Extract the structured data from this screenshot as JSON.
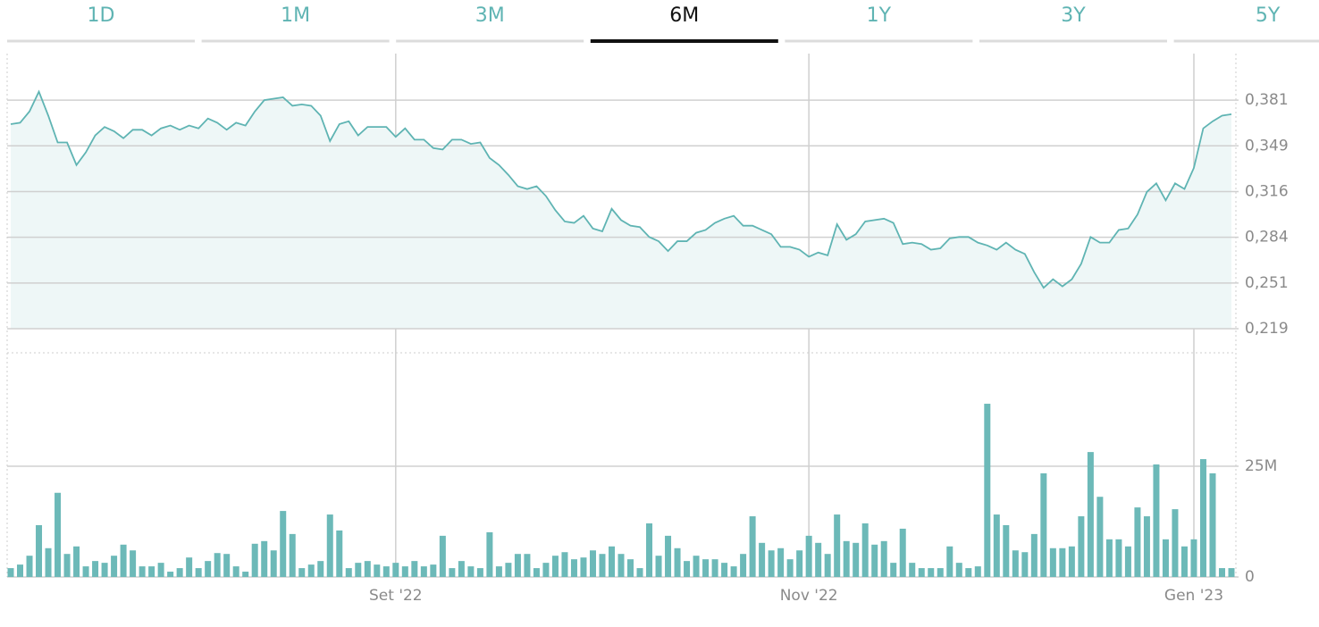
{
  "tabs": {
    "items": [
      "1D",
      "1M",
      "3M",
      "6M",
      "1Y",
      "3Y",
      "5Y"
    ],
    "active": 3
  },
  "chart_data": [
    {
      "type": "line",
      "color": "#5fb4b3",
      "fill": "#eef7f7",
      "values": [
        0.364,
        0.365,
        0.373,
        0.387,
        0.37,
        0.351,
        0.351,
        0.335,
        0.344,
        0.356,
        0.362,
        0.359,
        0.354,
        0.36,
        0.36,
        0.356,
        0.361,
        0.363,
        0.36,
        0.363,
        0.361,
        0.368,
        0.365,
        0.36,
        0.365,
        0.363,
        0.373,
        0.381,
        0.382,
        0.383,
        0.377,
        0.378,
        0.377,
        0.37,
        0.352,
        0.364,
        0.366,
        0.356,
        0.362,
        0.362,
        0.362,
        0.355,
        0.361,
        0.353,
        0.353,
        0.347,
        0.346,
        0.353,
        0.353,
        0.35,
        0.351,
        0.34,
        0.335,
        0.328,
        0.32,
        0.318,
        0.32,
        0.313,
        0.303,
        0.295,
        0.294,
        0.299,
        0.29,
        0.288,
        0.304,
        0.296,
        0.292,
        0.291,
        0.284,
        0.281,
        0.274,
        0.281,
        0.281,
        0.287,
        0.289,
        0.294,
        0.297,
        0.299,
        0.292,
        0.292,
        0.289,
        0.286,
        0.277,
        0.277,
        0.275,
        0.27,
        0.273,
        0.271,
        0.293,
        0.282,
        0.286,
        0.295,
        0.296,
        0.297,
        0.294,
        0.279,
        0.28,
        0.279,
        0.275,
        0.276,
        0.283,
        0.284,
        0.284,
        0.28,
        0.278,
        0.275,
        0.28,
        0.275,
        0.272,
        0.259,
        0.248,
        0.254,
        0.249,
        0.254,
        0.265,
        0.284,
        0.28,
        0.28,
        0.289,
        0.29,
        0.3,
        0.316,
        0.322,
        0.31,
        0.322,
        0.318,
        0.333,
        0.361,
        0.366,
        0.37,
        0.371
      ],
      "ylim": [
        0.219,
        0.414
      ],
      "yticks": [
        {
          "value": 0.219,
          "label": "0,219"
        },
        {
          "value": 0.2514,
          "label": "0,251"
        },
        {
          "value": 0.2838,
          "label": "0,284"
        },
        {
          "value": 0.3162,
          "label": "0,316"
        },
        {
          "value": 0.3486,
          "label": "0,349"
        },
        {
          "value": 0.381,
          "label": "0,381"
        }
      ],
      "grid": true
    },
    {
      "type": "bar",
      "color": "#6cb9b8",
      "categories": [
        null,
        null,
        null,
        null,
        null,
        null,
        null,
        null,
        null,
        null,
        null,
        null,
        null,
        null,
        null,
        null,
        null,
        null,
        null,
        null,
        null,
        null,
        null,
        null,
        null,
        null,
        null,
        null,
        null,
        null,
        null,
        null,
        null,
        null,
        null,
        null,
        null,
        null,
        null,
        null,
        null,
        "Set '22",
        null,
        null,
        null,
        null,
        null,
        null,
        null,
        null,
        null,
        null,
        null,
        null,
        null,
        null,
        null,
        null,
        null,
        null,
        null,
        null,
        null,
        null,
        null,
        null,
        null,
        null,
        null,
        null,
        null,
        null,
        null,
        null,
        null,
        null,
        null,
        null,
        null,
        null,
        null,
        null,
        null,
        null,
        null,
        "Nov '22",
        null,
        null,
        null,
        null,
        null,
        null,
        null,
        null,
        null,
        null,
        null,
        null,
        null,
        null,
        null,
        null,
        null,
        null,
        null,
        null,
        null,
        null,
        null,
        null,
        null,
        null,
        null,
        null,
        null,
        null,
        null,
        null,
        null,
        null,
        null,
        null,
        null,
        null,
        null,
        null,
        "Gen '23",
        null,
        null,
        null,
        null
      ],
      "values": [
        2.0,
        2.8,
        4.8,
        11.7,
        6.5,
        19.0,
        5.2,
        6.9,
        2.4,
        3.6,
        3.2,
        4.8,
        7.3,
        6.0,
        2.4,
        2.4,
        3.2,
        1.2,
        2.0,
        4.4,
        2.0,
        3.6,
        5.4,
        5.2,
        2.4,
        1.2,
        7.5,
        8.1,
        6.0,
        14.9,
        9.7,
        2.0,
        2.8,
        3.6,
        14.1,
        10.5,
        2.0,
        3.2,
        3.6,
        2.8,
        2.4,
        3.2,
        2.4,
        3.6,
        2.4,
        2.8,
        9.3,
        2.0,
        3.6,
        2.4,
        2.0,
        10.1,
        2.4,
        3.2,
        5.2,
        5.2,
        2.0,
        3.2,
        4.8,
        5.6,
        4.0,
        4.4,
        6.0,
        5.2,
        6.9,
        5.2,
        4.0,
        2.0,
        12.1,
        4.8,
        9.3,
        6.5,
        3.6,
        4.8,
        4.0,
        4.0,
        3.2,
        2.4,
        5.2,
        13.7,
        7.7,
        6.0,
        6.5,
        4.0,
        6.0,
        9.3,
        7.7,
        5.2,
        14.1,
        8.1,
        7.7,
        12.1,
        7.3,
        8.1,
        3.2,
        10.9,
        3.2,
        2.0,
        2.0,
        2.0,
        6.9,
        3.2,
        2.0,
        2.4,
        39.1,
        14.1,
        11.7,
        6.0,
        5.6,
        9.7,
        23.4,
        6.5,
        6.5,
        6.9,
        13.7,
        28.2,
        18.1,
        8.5,
        8.5,
        6.9,
        15.7,
        13.7,
        25.4,
        8.5,
        15.3,
        6.9,
        8.5,
        26.6,
        23.4,
        2.0,
        2.0
      ],
      "ylim": [
        0,
        50.6
      ],
      "yticks": [
        0,
        {
          "value": 25,
          "label": "25M"
        }
      ],
      "grid": true
    }
  ]
}
